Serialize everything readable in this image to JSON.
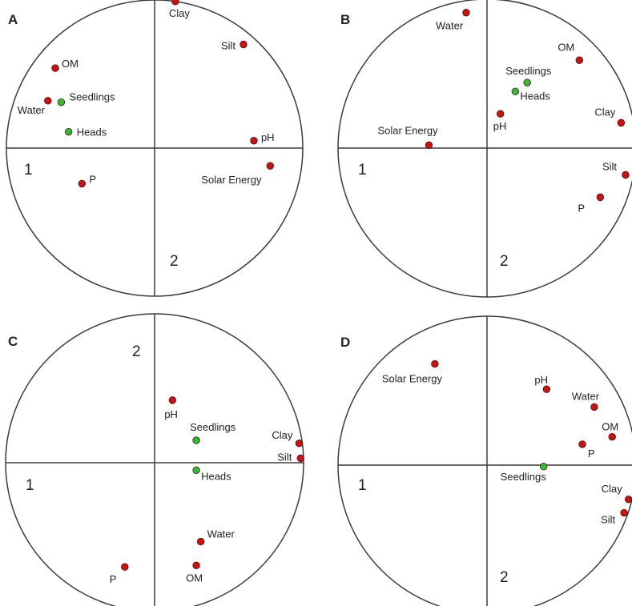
{
  "chart_data": [
    {
      "panel": "A",
      "type": "scatter",
      "axis_labels": [
        "1",
        "2"
      ],
      "xlim": [
        -1,
        1
      ],
      "ylim": [
        -1,
        1
      ],
      "grid": false,
      "points": [
        {
          "label": "Clay",
          "x": 0.14,
          "y": 0.99,
          "color": "#cc1111"
        },
        {
          "label": "Silt",
          "x": 0.6,
          "y": 0.7,
          "color": "#cc1111"
        },
        {
          "label": "OM",
          "x": -0.67,
          "y": 0.54,
          "color": "#cc1111"
        },
        {
          "label": "Water",
          "x": -0.72,
          "y": 0.32,
          "color": "#cc1111"
        },
        {
          "label": "Seedlings",
          "x": -0.63,
          "y": 0.31,
          "color": "#33bb33"
        },
        {
          "label": "Heads",
          "x": -0.58,
          "y": 0.11,
          "color": "#33bb33"
        },
        {
          "label": "pH",
          "x": 0.67,
          "y": 0.05,
          "color": "#cc1111"
        },
        {
          "label": "Solar Energy",
          "x": 0.78,
          "y": -0.12,
          "color": "#cc1111"
        },
        {
          "label": "P",
          "x": -0.49,
          "y": -0.24,
          "color": "#cc1111"
        }
      ]
    },
    {
      "panel": "B",
      "type": "scatter",
      "axis_labels": [
        "1",
        "2"
      ],
      "xlim": [
        -1,
        1
      ],
      "ylim": [
        -1,
        1
      ],
      "grid": false,
      "points": [
        {
          "label": "Water",
          "x": -0.14,
          "y": 0.91,
          "color": "#cc1111"
        },
        {
          "label": "OM",
          "x": 0.62,
          "y": 0.59,
          "color": "#cc1111"
        },
        {
          "label": "Seedlings",
          "x": 0.27,
          "y": 0.44,
          "color": "#33bb33"
        },
        {
          "label": "Heads",
          "x": 0.19,
          "y": 0.38,
          "color": "#33bb33"
        },
        {
          "label": "pH",
          "x": 0.09,
          "y": 0.23,
          "color": "#cc1111"
        },
        {
          "label": "Clay",
          "x": 0.9,
          "y": 0.17,
          "color": "#cc1111"
        },
        {
          "label": "Solar Energy",
          "x": -0.39,
          "y": 0.02,
          "color": "#cc1111"
        },
        {
          "label": "Silt",
          "x": 0.93,
          "y": -0.18,
          "color": "#cc1111"
        },
        {
          "label": "P",
          "x": 0.76,
          "y": -0.33,
          "color": "#cc1111"
        }
      ]
    },
    {
      "panel": "C",
      "type": "scatter",
      "axis_labels": [
        "1",
        "2"
      ],
      "xlim": [
        -1,
        1
      ],
      "ylim": [
        -1,
        1
      ],
      "grid": false,
      "points": [
        {
          "label": "pH",
          "x": 0.12,
          "y": 0.42,
          "color": "#cc1111"
        },
        {
          "label": "Seedlings",
          "x": 0.28,
          "y": 0.15,
          "color": "#33bb33"
        },
        {
          "label": "Clay",
          "x": 0.97,
          "y": 0.13,
          "color": "#cc1111"
        },
        {
          "label": "Silt",
          "x": 0.98,
          "y": 0.03,
          "color": "#cc1111"
        },
        {
          "label": "Heads",
          "x": 0.28,
          "y": -0.05,
          "color": "#33bb33"
        },
        {
          "label": "Water",
          "x": 0.31,
          "y": -0.53,
          "color": "#cc1111"
        },
        {
          "label": "OM",
          "x": 0.28,
          "y": -0.69,
          "color": "#cc1111"
        },
        {
          "label": "P",
          "x": -0.2,
          "y": -0.7,
          "color": "#cc1111"
        }
      ]
    },
    {
      "panel": "D",
      "type": "scatter",
      "axis_labels": [
        "1",
        "2"
      ],
      "xlim": [
        -1,
        1
      ],
      "ylim": [
        -1,
        1
      ],
      "grid": false,
      "points": [
        {
          "label": "Solar Energy",
          "x": -0.35,
          "y": 0.68,
          "color": "#cc1111"
        },
        {
          "label": "pH",
          "x": 0.4,
          "y": 0.51,
          "color": "#cc1111"
        },
        {
          "label": "Water",
          "x": 0.72,
          "y": 0.39,
          "color": "#cc1111"
        },
        {
          "label": "OM",
          "x": 0.84,
          "y": 0.19,
          "color": "#cc1111"
        },
        {
          "label": "P",
          "x": 0.64,
          "y": 0.14,
          "color": "#cc1111"
        },
        {
          "label": "Seedlings",
          "x": 0.38,
          "y": -0.01,
          "color": "#33bb33"
        },
        {
          "label": "Clay",
          "x": 0.95,
          "y": -0.23,
          "color": "#cc1111"
        },
        {
          "label": "Silt",
          "x": 0.92,
          "y": -0.32,
          "color": "#cc1111"
        }
      ]
    }
  ]
}
